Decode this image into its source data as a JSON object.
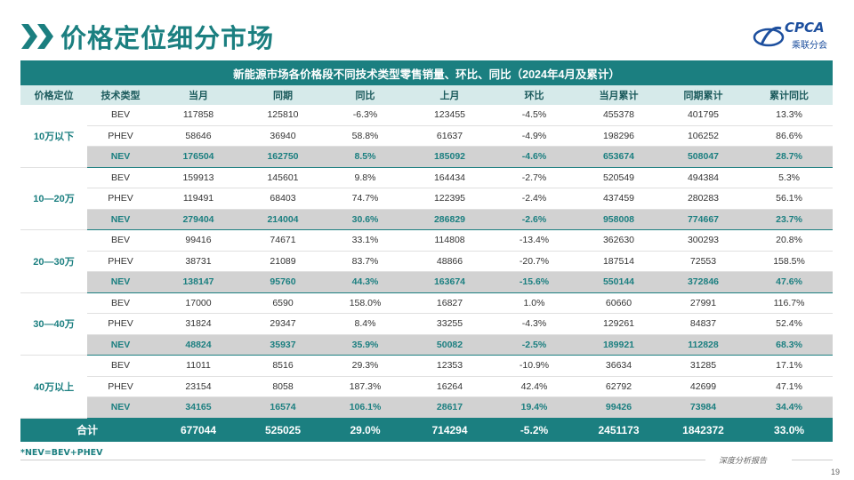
{
  "page_title": "价格定位细分市场",
  "logo": {
    "text": "CPCA",
    "subtext": "乘联分会"
  },
  "table": {
    "title": "新能源市场各价格段不同技术类型零售销量、环比、同比（2024年4月及累计）",
    "headers": [
      "价格定位",
      "技术类型",
      "当月",
      "同期",
      "同比",
      "上月",
      "环比",
      "当月累计",
      "同期累计",
      "累计同比"
    ],
    "groups": [
      {
        "label": "10万以下",
        "rows": [
          {
            "type": "BEV",
            "values": [
              "117858",
              "125810",
              "-6.3%",
              "123455",
              "-4.5%",
              "455378",
              "401795",
              "13.3%"
            ]
          },
          {
            "type": "PHEV",
            "values": [
              "58646",
              "36940",
              "58.8%",
              "61637",
              "-4.9%",
              "198296",
              "106252",
              "86.6%"
            ]
          },
          {
            "type": "NEV",
            "values": [
              "176504",
              "162750",
              "8.5%",
              "185092",
              "-4.6%",
              "653674",
              "508047",
              "28.7%"
            ]
          }
        ]
      },
      {
        "label": "10—20万",
        "rows": [
          {
            "type": "BEV",
            "values": [
              "159913",
              "145601",
              "9.8%",
              "164434",
              "-2.7%",
              "520549",
              "494384",
              "5.3%"
            ]
          },
          {
            "type": "PHEV",
            "values": [
              "119491",
              "68403",
              "74.7%",
              "122395",
              "-2.4%",
              "437459",
              "280283",
              "56.1%"
            ]
          },
          {
            "type": "NEV",
            "values": [
              "279404",
              "214004",
              "30.6%",
              "286829",
              "-2.6%",
              "958008",
              "774667",
              "23.7%"
            ]
          }
        ]
      },
      {
        "label": "20—30万",
        "rows": [
          {
            "type": "BEV",
            "values": [
              "99416",
              "74671",
              "33.1%",
              "114808",
              "-13.4%",
              "362630",
              "300293",
              "20.8%"
            ]
          },
          {
            "type": "PHEV",
            "values": [
              "38731",
              "21089",
              "83.7%",
              "48866",
              "-20.7%",
              "187514",
              "72553",
              "158.5%"
            ]
          },
          {
            "type": "NEV",
            "values": [
              "138147",
              "95760",
              "44.3%",
              "163674",
              "-15.6%",
              "550144",
              "372846",
              "47.6%"
            ]
          }
        ]
      },
      {
        "label": "30—40万",
        "rows": [
          {
            "type": "BEV",
            "values": [
              "17000",
              "6590",
              "158.0%",
              "16827",
              "1.0%",
              "60660",
              "27991",
              "116.7%"
            ]
          },
          {
            "type": "PHEV",
            "values": [
              "31824",
              "29347",
              "8.4%",
              "33255",
              "-4.3%",
              "129261",
              "84837",
              "52.4%"
            ]
          },
          {
            "type": "NEV",
            "values": [
              "48824",
              "35937",
              "35.9%",
              "50082",
              "-2.5%",
              "189921",
              "112828",
              "68.3%"
            ]
          }
        ]
      },
      {
        "label": "40万以上",
        "rows": [
          {
            "type": "BEV",
            "values": [
              "11011",
              "8516",
              "29.3%",
              "12353",
              "-10.9%",
              "36634",
              "31285",
              "17.1%"
            ]
          },
          {
            "type": "PHEV",
            "values": [
              "23154",
              "8058",
              "187.3%",
              "16264",
              "42.4%",
              "62792",
              "42699",
              "47.1%"
            ]
          },
          {
            "type": "NEV",
            "values": [
              "34165",
              "16574",
              "106.1%",
              "28617",
              "19.4%",
              "99426",
              "73984",
              "34.4%"
            ]
          }
        ]
      }
    ],
    "total": {
      "label": "合计",
      "values": [
        "677044",
        "525025",
        "29.0%",
        "714294",
        "-5.2%",
        "2451173",
        "1842372",
        "33.0%"
      ]
    }
  },
  "footnote": "*NEV=BEV+PHEV",
  "footer_text": "深度分析报告",
  "page_number": "19",
  "colors": {
    "primary": "#1b7f80",
    "header_bg": "#d6eaea",
    "nev_row_bg": "#d2d2d2",
    "logo_blue": "#1d4f9e"
  }
}
